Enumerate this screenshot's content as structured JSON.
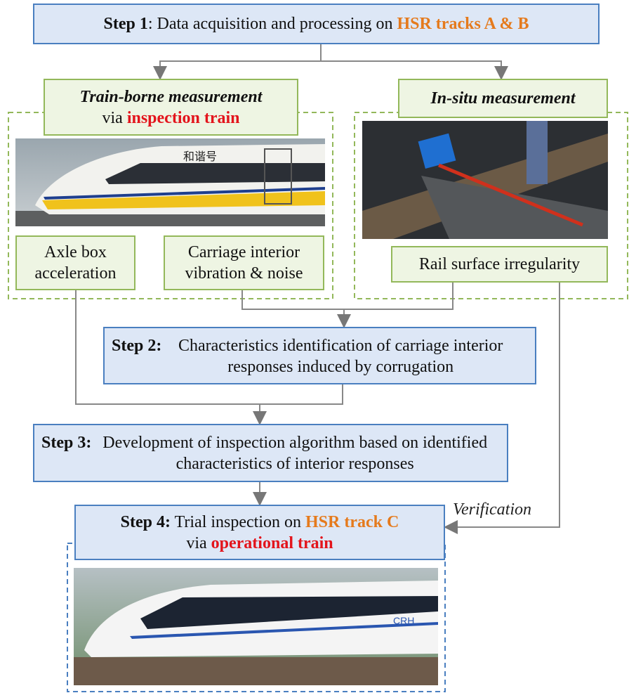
{
  "step1": {
    "label": "Step 1",
    "text": ": Data acquisition and processing on ",
    "highlight": "HSR tracks A & B"
  },
  "train_borne": {
    "title": "Train-borne measurement",
    "via": "via",
    "highlight": "inspection train"
  },
  "in_situ": {
    "title": "In-situ measurement"
  },
  "outputs": [
    "Axle box acceleration",
    "Carriage interior vibration & noise",
    "Rail surface irregularity"
  ],
  "step2": {
    "label": "Step 2:",
    "text": "Characteristics identification of carriage interior responses induced by corrugation"
  },
  "step3": {
    "label": "Step 3:",
    "text": "Development of inspection algorithm based on identified characteristics of interior responses"
  },
  "step4": {
    "label": "Step 4:",
    "text": "Trial inspection on ",
    "highlight": "HSR track C",
    "via": "via",
    "highlight2": "operational train"
  },
  "verification": "Verification",
  "train_logo": "和谐号"
}
